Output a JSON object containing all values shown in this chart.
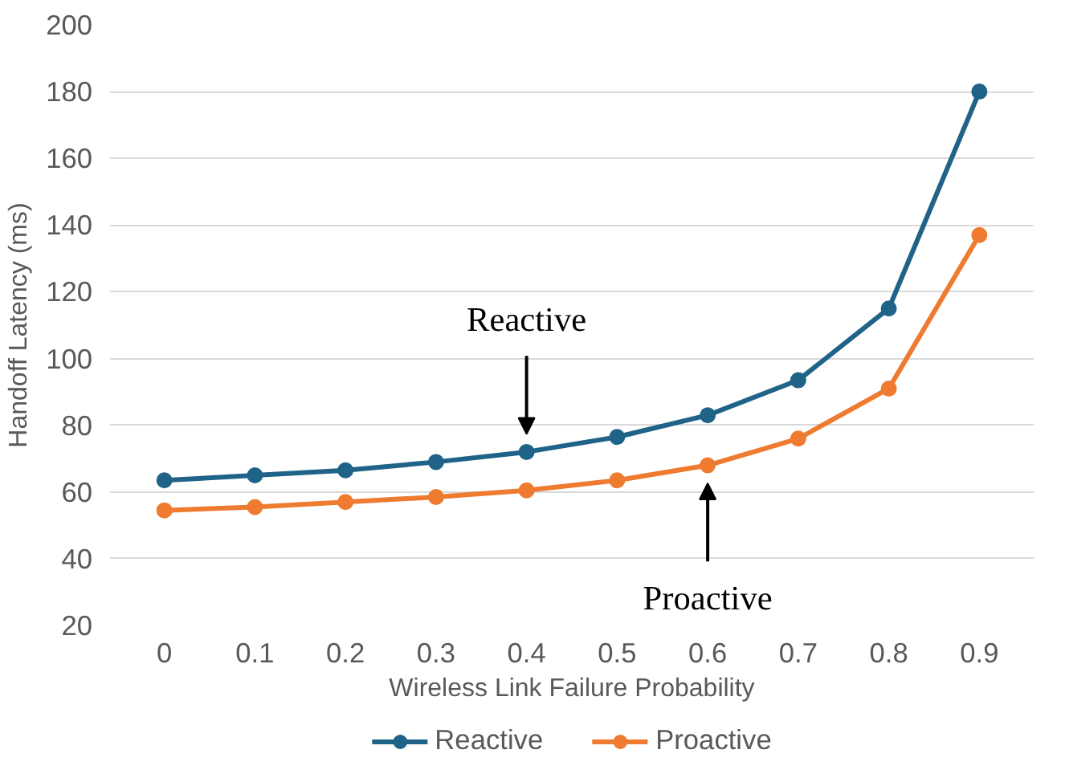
{
  "chart_data": {
    "type": "line",
    "xlabel": "Wireless Link Failure Probability",
    "ylabel": "Handoff Latency (ms)",
    "categories": [
      "0",
      "0.1",
      "0.2",
      "0.3",
      "0.4",
      "0.5",
      "0.6",
      "0.7",
      "0.8",
      "0.9"
    ],
    "series": [
      {
        "name": "Reactive",
        "color": "#1f6388",
        "values": [
          63.5,
          65,
          66.5,
          69,
          72,
          76.5,
          83,
          93.5,
          115,
          180
        ]
      },
      {
        "name": "Proactive",
        "color": "#ee7b30",
        "values": [
          54.5,
          55.5,
          57,
          58.5,
          60.5,
          63.5,
          68,
          76,
          91,
          137
        ]
      }
    ],
    "ylim": [
      20,
      200
    ],
    "yticks": [
      20,
      40,
      60,
      80,
      100,
      120,
      140,
      160,
      180,
      200
    ],
    "grid": "y",
    "legend": "bottom",
    "marker": "circle",
    "line_style": "solid",
    "annotations": [
      "Reactive",
      "Proactive"
    ]
  }
}
